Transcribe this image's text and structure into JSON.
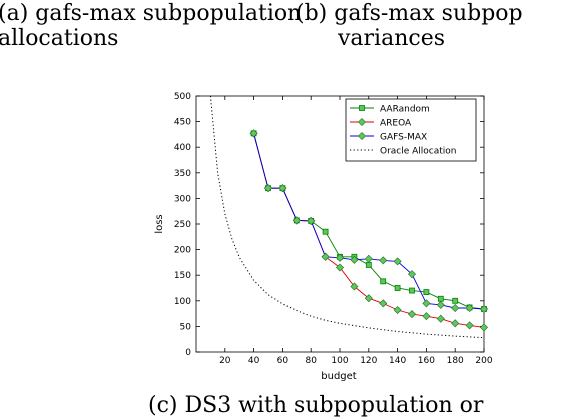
{
  "captions": {
    "a_line1": "(a)  gafs-max  subpopulation",
    "a_line2": "allocations",
    "b_line1": "(b)  gafs-max  subpop",
    "b_line2": "variances",
    "c_line1": "(c) DS3 with subpopulation or"
  },
  "chart_data": {
    "type": "line",
    "title": "",
    "xlabel": "budget",
    "ylabel": "loss",
    "xlim": [
      0,
      200
    ],
    "ylim": [
      0,
      500
    ],
    "xticks": [
      20,
      40,
      60,
      80,
      100,
      120,
      140,
      160,
      180,
      200
    ],
    "yticks": [
      0,
      50,
      100,
      150,
      200,
      250,
      300,
      350,
      400,
      450,
      500
    ],
    "grid": false,
    "legend_position": "top-right",
    "series": [
      {
        "name": "AARandom",
        "color": "#008000",
        "marker": "square",
        "x": [
          40,
          50,
          60,
          70,
          80,
          90,
          100,
          110,
          120,
          130,
          140,
          150,
          160,
          170,
          180,
          190,
          200
        ],
        "y": [
          427,
          320,
          320,
          257,
          256,
          235,
          186,
          186,
          170,
          138,
          125,
          120,
          117,
          104,
          100,
          87,
          84
        ]
      },
      {
        "name": "AREOA",
        "color": "#e00000",
        "marker": "diamond",
        "x": [
          40,
          50,
          60,
          70,
          80,
          90,
          100,
          110,
          120,
          130,
          140,
          150,
          160,
          170,
          180,
          190,
          200
        ],
        "y": [
          427,
          320,
          320,
          257,
          256,
          186,
          165,
          128,
          105,
          95,
          82,
          74,
          70,
          65,
          56,
          52,
          48
        ]
      },
      {
        "name": "GAFS-MAX",
        "color": "#0000e0",
        "marker": "diamond",
        "x": [
          40,
          50,
          60,
          70,
          80,
          90,
          100,
          110,
          120,
          130,
          140,
          150,
          160,
          170,
          180,
          190,
          200
        ],
        "y": [
          427,
          320,
          320,
          257,
          256,
          186,
          184,
          180,
          182,
          179,
          177,
          152,
          95,
          92,
          86,
          86,
          84
        ]
      },
      {
        "name": "Oracle Allocation",
        "color": "#000000",
        "marker": "none",
        "dashed": true,
        "x": [
          10,
          15,
          20,
          25,
          30,
          40,
          50,
          60,
          70,
          80,
          90,
          100,
          120,
          140,
          160,
          180,
          200
        ],
        "y": [
          500,
          350,
          270,
          220,
          185,
          140,
          112,
          94,
          81,
          70,
          62,
          56,
          47,
          40,
          35,
          31,
          28
        ]
      }
    ]
  }
}
